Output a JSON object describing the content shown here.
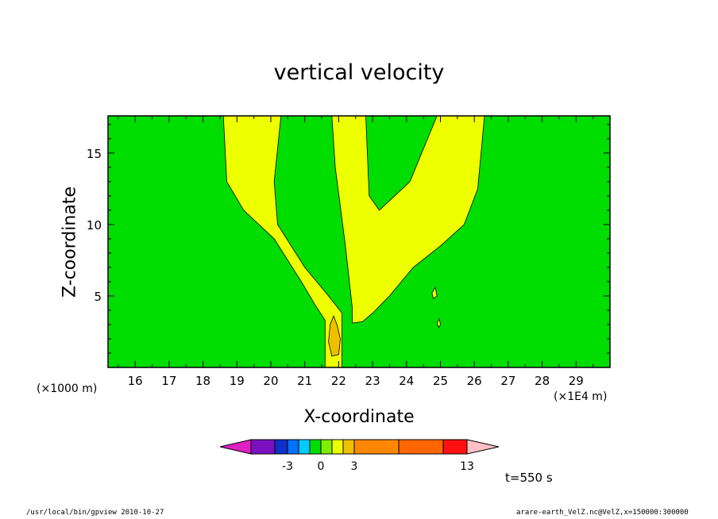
{
  "chart_data": {
    "type": "heatmap",
    "title": "vertical velocity",
    "xlabel": "X-coordinate",
    "ylabel": "Z-coordinate",
    "x_unit_left": "(×1000 m)",
    "x_unit_right": "(×1E4 m)",
    "xlim": [
      15.2,
      30.0
    ],
    "ylim": [
      0.0,
      17.6
    ],
    "x_ticks": [
      16,
      17,
      18,
      19,
      20,
      21,
      22,
      23,
      24,
      25,
      26,
      27,
      28,
      29
    ],
    "y_ticks": [
      5,
      10,
      15
    ],
    "background_level_color": "#00dd00",
    "fields": [
      {
        "name": "left-plume",
        "level_color": "#eeff00",
        "outline": [
          [
            18.6,
            17.6
          ],
          [
            18.7,
            13
          ],
          [
            19.2,
            11
          ],
          [
            20.1,
            9
          ],
          [
            20.9,
            6
          ],
          [
            21.3,
            4.4
          ],
          [
            21.6,
            3.3
          ],
          [
            21.6,
            0
          ],
          [
            22.1,
            0
          ],
          [
            22.1,
            3.8
          ],
          [
            21.7,
            5
          ],
          [
            21.0,
            7
          ],
          [
            20.2,
            10
          ],
          [
            20.1,
            13
          ],
          [
            20.3,
            17.6
          ]
        ]
      },
      {
        "name": "right-plume",
        "level_color": "#eeff00",
        "outline": [
          [
            21.8,
            17.6
          ],
          [
            21.9,
            14
          ],
          [
            22.2,
            8.5
          ],
          [
            22.4,
            4.2
          ],
          [
            22.4,
            3.1
          ],
          [
            22.7,
            3.2
          ],
          [
            23.0,
            3.8
          ],
          [
            23.5,
            5
          ],
          [
            24.2,
            7
          ],
          [
            25.0,
            8.5
          ],
          [
            25.7,
            10
          ],
          [
            26.1,
            12.5
          ],
          [
            26.3,
            17.6
          ],
          [
            24.9,
            17.6
          ],
          [
            24.1,
            13
          ],
          [
            23.2,
            11
          ],
          [
            22.9,
            12
          ],
          [
            22.8,
            17.6
          ]
        ]
      },
      {
        "name": "core-cell",
        "level_color": "#f0c000",
        "outline": [
          [
            21.85,
            3.6
          ],
          [
            21.95,
            3
          ],
          [
            22.05,
            2
          ],
          [
            22.0,
            0.9
          ],
          [
            21.8,
            0.8
          ],
          [
            21.7,
            1.8
          ],
          [
            21.75,
            3
          ]
        ]
      },
      {
        "name": "small-cell-1",
        "level_color": "#eeff00",
        "outline": [
          [
            24.85,
            5.6
          ],
          [
            24.9,
            5
          ],
          [
            24.8,
            4.8
          ],
          [
            24.75,
            5.2
          ]
        ]
      },
      {
        "name": "small-cell-2",
        "level_color": "#eeff00",
        "outline": [
          [
            24.97,
            3.4
          ],
          [
            25.0,
            3.0
          ],
          [
            24.95,
            2.8
          ],
          [
            24.9,
            3.1
          ]
        ]
      }
    ],
    "colorbar": {
      "colors": [
        "#e020c0",
        "#7a10c0",
        "#1030c8",
        "#0070ff",
        "#00ccff",
        "#00dd00",
        "#80ee00",
        "#eeff00",
        "#f0c000",
        "#ff8800",
        "#ff6600",
        "#ff1010",
        "#ff7080",
        "#ffc0c8"
      ],
      "tick_labels": [
        "-3",
        "0",
        "3",
        "13"
      ]
    },
    "time_label": "t=550 s"
  },
  "footer": {
    "left": "/usr/local/bin/gpview  2010-10-27",
    "right": "arare-earth_VelZ.nc@VelZ,x=150000:300000"
  }
}
